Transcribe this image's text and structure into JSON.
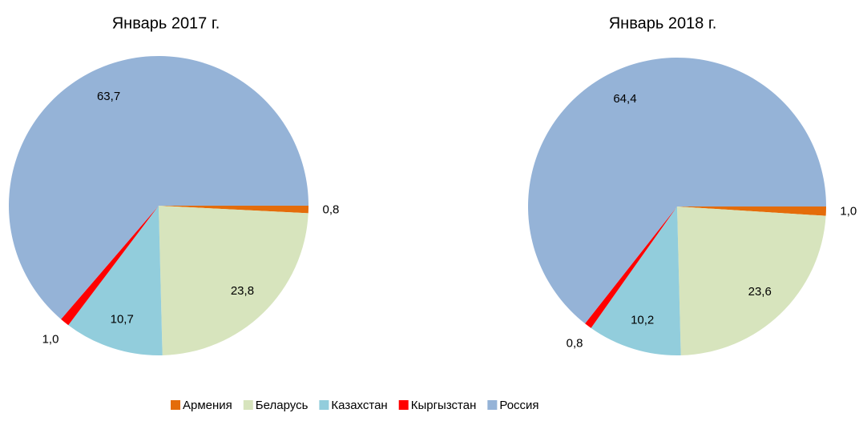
{
  "legend": {
    "items": [
      "Армения",
      "Беларусь",
      "Казахстан",
      "Кыргызстан",
      "Россия"
    ],
    "colors": [
      "#e46c0a",
      "#d7e4bd",
      "#92cddc",
      "#ff0000",
      "#95b3d7"
    ]
  },
  "chart_data": [
    {
      "type": "pie",
      "title": "Январь 2017 г.",
      "values": [
        0.8,
        23.8,
        10.7,
        1.0,
        63.7
      ],
      "value_labels": [
        "0,8",
        "23,8",
        "10,7",
        "1,0",
        "63,7"
      ]
    },
    {
      "type": "pie",
      "title": "Январь 2018 г.",
      "values": [
        1.0,
        23.6,
        10.2,
        0.8,
        64.4
      ],
      "value_labels": [
        "1,0",
        "23,6",
        "10,2",
        "0,8",
        "64,4"
      ]
    }
  ]
}
